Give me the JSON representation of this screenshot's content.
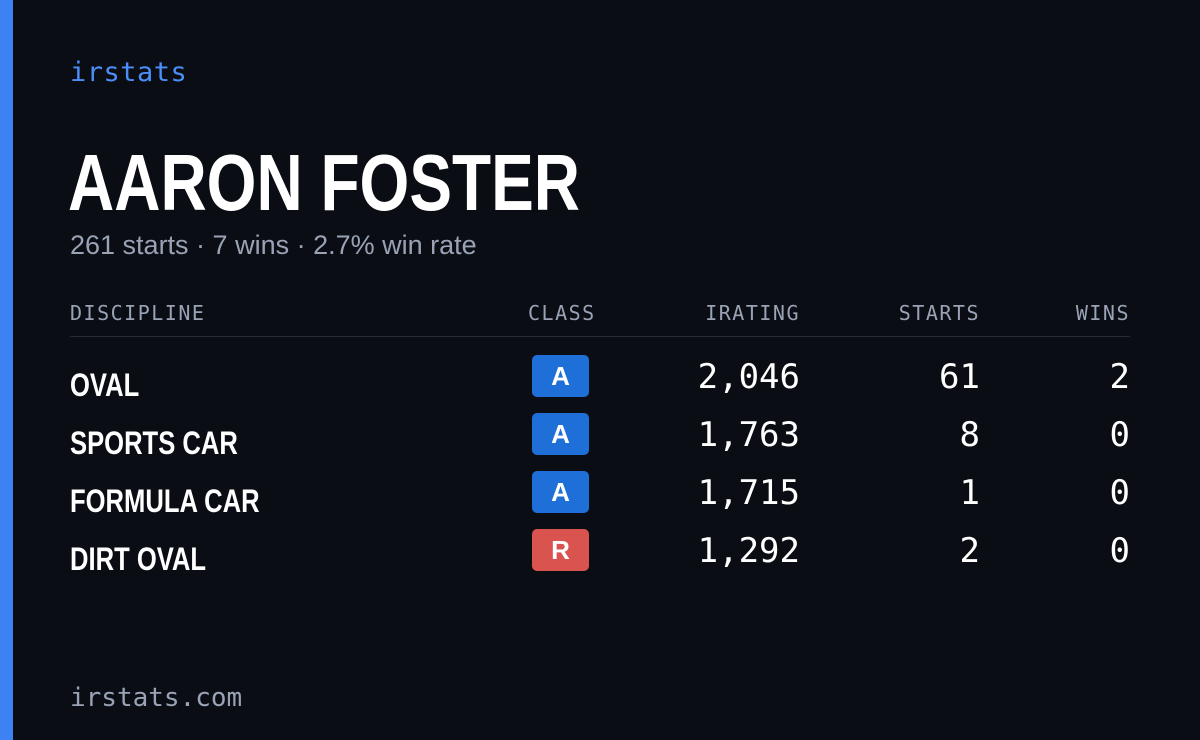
{
  "brand": "irstats",
  "player": {
    "name": "AARON FOSTER",
    "summary": "261 starts · 7 wins · 2.7% win rate"
  },
  "table": {
    "headers": {
      "discipline": "DISCIPLINE",
      "class": "CLASS",
      "irating": "IRATING",
      "starts": "STARTS",
      "wins": "WINS"
    },
    "rows": [
      {
        "discipline": "OVAL",
        "class": "A",
        "class_color": "#1f6fd8",
        "irating": "2,046",
        "starts": "61",
        "wins": "2"
      },
      {
        "discipline": "SPORTS CAR",
        "class": "A",
        "class_color": "#1f6fd8",
        "irating": "1,763",
        "starts": "8",
        "wins": "0"
      },
      {
        "discipline": "FORMULA CAR",
        "class": "A",
        "class_color": "#1f6fd8",
        "irating": "1,715",
        "starts": "1",
        "wins": "0"
      },
      {
        "discipline": "DIRT OVAL",
        "class": "R",
        "class_color": "#d9534f",
        "irating": "1,292",
        "starts": "2",
        "wins": "0"
      }
    ]
  },
  "footer": "irstats.com",
  "colors": {
    "accent": "#3d82f4",
    "background": "#0a0d14",
    "muted": "#9aa3b5"
  }
}
